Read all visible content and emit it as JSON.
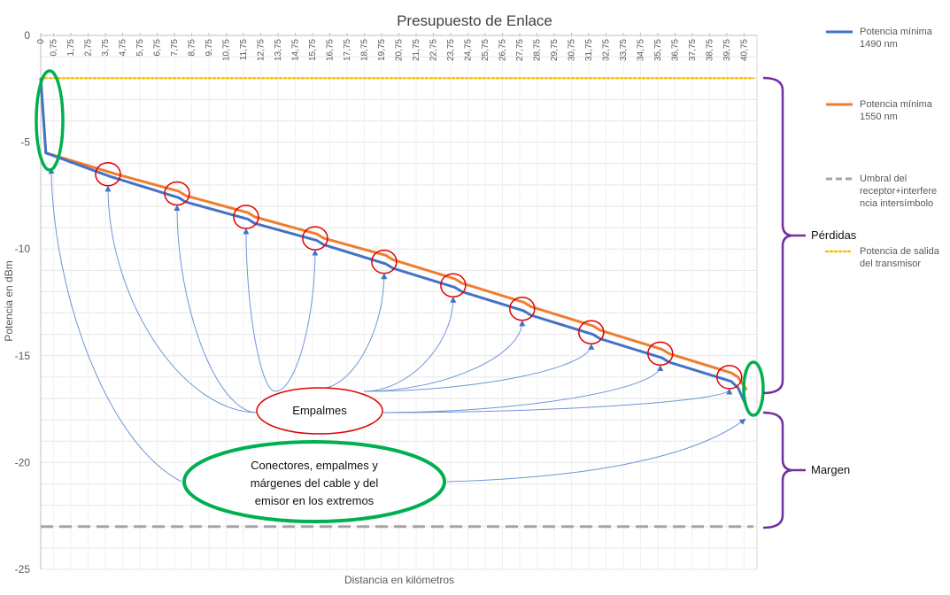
{
  "chart_data": {
    "type": "line",
    "title": "Presupuesto de Enlace",
    "xlabel": "Distancia en kilómetros",
    "ylabel": "Potencia en dBm",
    "ylim": [
      -25,
      0
    ],
    "yticks": [
      0,
      -5,
      -10,
      -15,
      -20,
      -25
    ],
    "x_range": [
      0,
      41.5
    ],
    "xtick_labels": [
      "0",
      "0,75",
      "1,75",
      "2,75",
      "3,75",
      "4,75",
      "5,75",
      "6,75",
      "7,75",
      "8,75",
      "9,75",
      "10,75",
      "11,75",
      "12,75",
      "13,75",
      "14,75",
      "15,75",
      "16,75",
      "17,75",
      "18,75",
      "19,75",
      "20,75",
      "21,75",
      "22,75",
      "23,75",
      "24,75",
      "25,75",
      "26,75",
      "27,75",
      "28,75",
      "29,75",
      "30,75",
      "31,75",
      "32,75",
      "33,75",
      "34,75",
      "35,75",
      "36,75",
      "37,75",
      "38,75",
      "39,75",
      "40,75"
    ],
    "xtick_values": [
      0,
      0.75,
      1.75,
      2.75,
      3.75,
      4.75,
      5.75,
      6.75,
      7.75,
      8.75,
      9.75,
      10.75,
      11.75,
      12.75,
      13.75,
      14.75,
      15.75,
      16.75,
      17.75,
      18.75,
      19.75,
      20.75,
      21.75,
      22.75,
      23.75,
      24.75,
      25.75,
      26.75,
      27.75,
      28.75,
      29.75,
      30.75,
      31.75,
      32.75,
      33.75,
      34.75,
      35.75,
      36.75,
      37.75,
      38.75,
      39.75,
      40.75
    ],
    "grid": true,
    "legend_position": "right",
    "series": [
      {
        "name": "Potencia mínima 1490 nm",
        "color": "#4472C4",
        "style": "solid",
        "points": [
          [
            0,
            -2
          ],
          [
            0.3,
            -5.5
          ],
          [
            4,
            -6.6
          ],
          [
            4.4,
            -6.7
          ],
          [
            8,
            -7.6
          ],
          [
            8.4,
            -7.8
          ],
          [
            12,
            -8.6
          ],
          [
            12.4,
            -8.8
          ],
          [
            16,
            -9.6
          ],
          [
            16.4,
            -9.8
          ],
          [
            20,
            -10.7
          ],
          [
            20.4,
            -10.9
          ],
          [
            24,
            -11.8
          ],
          [
            24.4,
            -12.0
          ],
          [
            28,
            -12.9
          ],
          [
            28.4,
            -13.1
          ],
          [
            32,
            -14.0
          ],
          [
            32.4,
            -14.2
          ],
          [
            36,
            -15.1
          ],
          [
            36.4,
            -15.3
          ],
          [
            40,
            -16.2
          ],
          [
            40.4,
            -16.5
          ],
          [
            40.9,
            -17.4
          ]
        ]
      },
      {
        "name": "Potencia mínima 1550 nm",
        "color": "#ED7D31",
        "style": "solid",
        "points": [
          [
            0,
            -2
          ],
          [
            0.3,
            -5.5
          ],
          [
            4,
            -6.4
          ],
          [
            4.4,
            -6.5
          ],
          [
            8,
            -7.3
          ],
          [
            8.4,
            -7.5
          ],
          [
            12,
            -8.3
          ],
          [
            12.4,
            -8.5
          ],
          [
            16,
            -9.3
          ],
          [
            16.4,
            -9.5
          ],
          [
            20,
            -10.3
          ],
          [
            20.4,
            -10.5
          ],
          [
            24,
            -11.4
          ],
          [
            24.4,
            -11.6
          ],
          [
            28,
            -12.5
          ],
          [
            28.4,
            -12.7
          ],
          [
            32,
            -13.6
          ],
          [
            32.4,
            -13.8
          ],
          [
            36,
            -14.7
          ],
          [
            36.4,
            -14.9
          ],
          [
            40,
            -15.8
          ],
          [
            40.4,
            -16.0
          ],
          [
            40.9,
            -16.6
          ]
        ]
      },
      {
        "name": "Umbral del receptor+interferencia intersímbolo",
        "color": "#A5A5A5",
        "style": "dashed",
        "points": [
          [
            0,
            -23
          ],
          [
            41.3,
            -23
          ]
        ]
      },
      {
        "name": "Potencia de salida del transmisor",
        "color": "#FFC000",
        "style": "dotted",
        "points": [
          [
            0,
            -2
          ],
          [
            41.3,
            -2
          ]
        ]
      }
    ],
    "legend": [
      {
        "lines": [
          "Potencia mínima",
          "1490 nm"
        ],
        "color": "#4472C4",
        "style": "solid"
      },
      {
        "lines": [
          "Potencia mínima",
          "1550 nm"
        ],
        "color": "#ED7D31",
        "style": "solid"
      },
      {
        "lines": [
          "Umbral del",
          "receptor+interfere",
          "ncia intersímbolo"
        ],
        "color": "#A5A5A5",
        "style": "dashed"
      },
      {
        "lines": [
          "Potencia de salida",
          "del transmisor"
        ],
        "color": "#FFC000",
        "style": "dotted"
      }
    ],
    "annotations": {
      "splices_label": "Empalmes",
      "splice_points": [
        [
          4,
          -6.5
        ],
        [
          8,
          -7.4
        ],
        [
          12,
          -8.5
        ],
        [
          16,
          -9.5
        ],
        [
          20,
          -10.6
        ],
        [
          24,
          -11.7
        ],
        [
          28,
          -12.8
        ],
        [
          32,
          -13.9
        ],
        [
          36,
          -14.9
        ],
        [
          40,
          -16.0
        ]
      ],
      "connectors_label_lines": [
        "Conectores, empalmes y",
        "márgenes del cable y del",
        "emisor en los extremos"
      ],
      "bracket_losses_label": "Pérdidas",
      "bracket_margin_label": "Margen"
    }
  }
}
